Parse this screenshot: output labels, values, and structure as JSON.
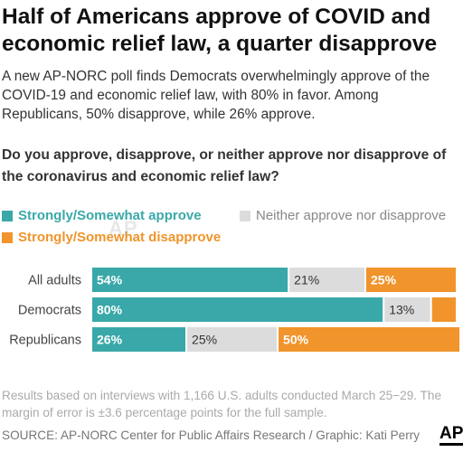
{
  "title": "Half of Americans approve of  COVID and economic relief law, a quarter disapprove",
  "subtitle": "A new AP-NORC poll finds Democrats overwhelmingly approve of the COVID-19 and economic relief law, with 80% in favor. Among Republicans, 50% disapprove, while 26% approve.",
  "question": "Do you approve, disapprove, or neither approve nor disapprove of the coronavirus and economic relief law?",
  "legend": {
    "approve": "Strongly/Somewhat approve",
    "neither": "Neither approve nor disapprove",
    "disapprove": "Strongly/Somewhat disapprove"
  },
  "watermark": "AP",
  "colors": {
    "approve": "#3aa8a8",
    "neither": "#dcdcdc",
    "disapprove": "#f0942b"
  },
  "chart_data": {
    "type": "bar",
    "orientation": "horizontal",
    "stacked": true,
    "categories": [
      "All adults",
      "Democrats",
      "Republicans"
    ],
    "series": [
      {
        "name": "Strongly/Somewhat approve",
        "values": [
          54,
          80,
          26
        ],
        "labels": [
          "54%",
          "80%",
          "26%"
        ]
      },
      {
        "name": "Neither approve nor disapprove",
        "values": [
          21,
          13,
          25
        ],
        "labels": [
          "21%",
          "13%",
          "25%"
        ]
      },
      {
        "name": "Strongly/Somewhat disapprove",
        "values": [
          25,
          7,
          50
        ],
        "labels": [
          "25%",
          "",
          "50%"
        ]
      }
    ],
    "xlim": [
      0,
      100
    ]
  },
  "footnote": "Results based on interviews with 1,166 U.S. adults conducted March 25−29. The margin of error is ±3.6 percentage points for the full sample.",
  "credit": "SOURCE: AP-NORC Center for Public Affairs Research / Graphic: Kati Perry",
  "logo": "AP"
}
